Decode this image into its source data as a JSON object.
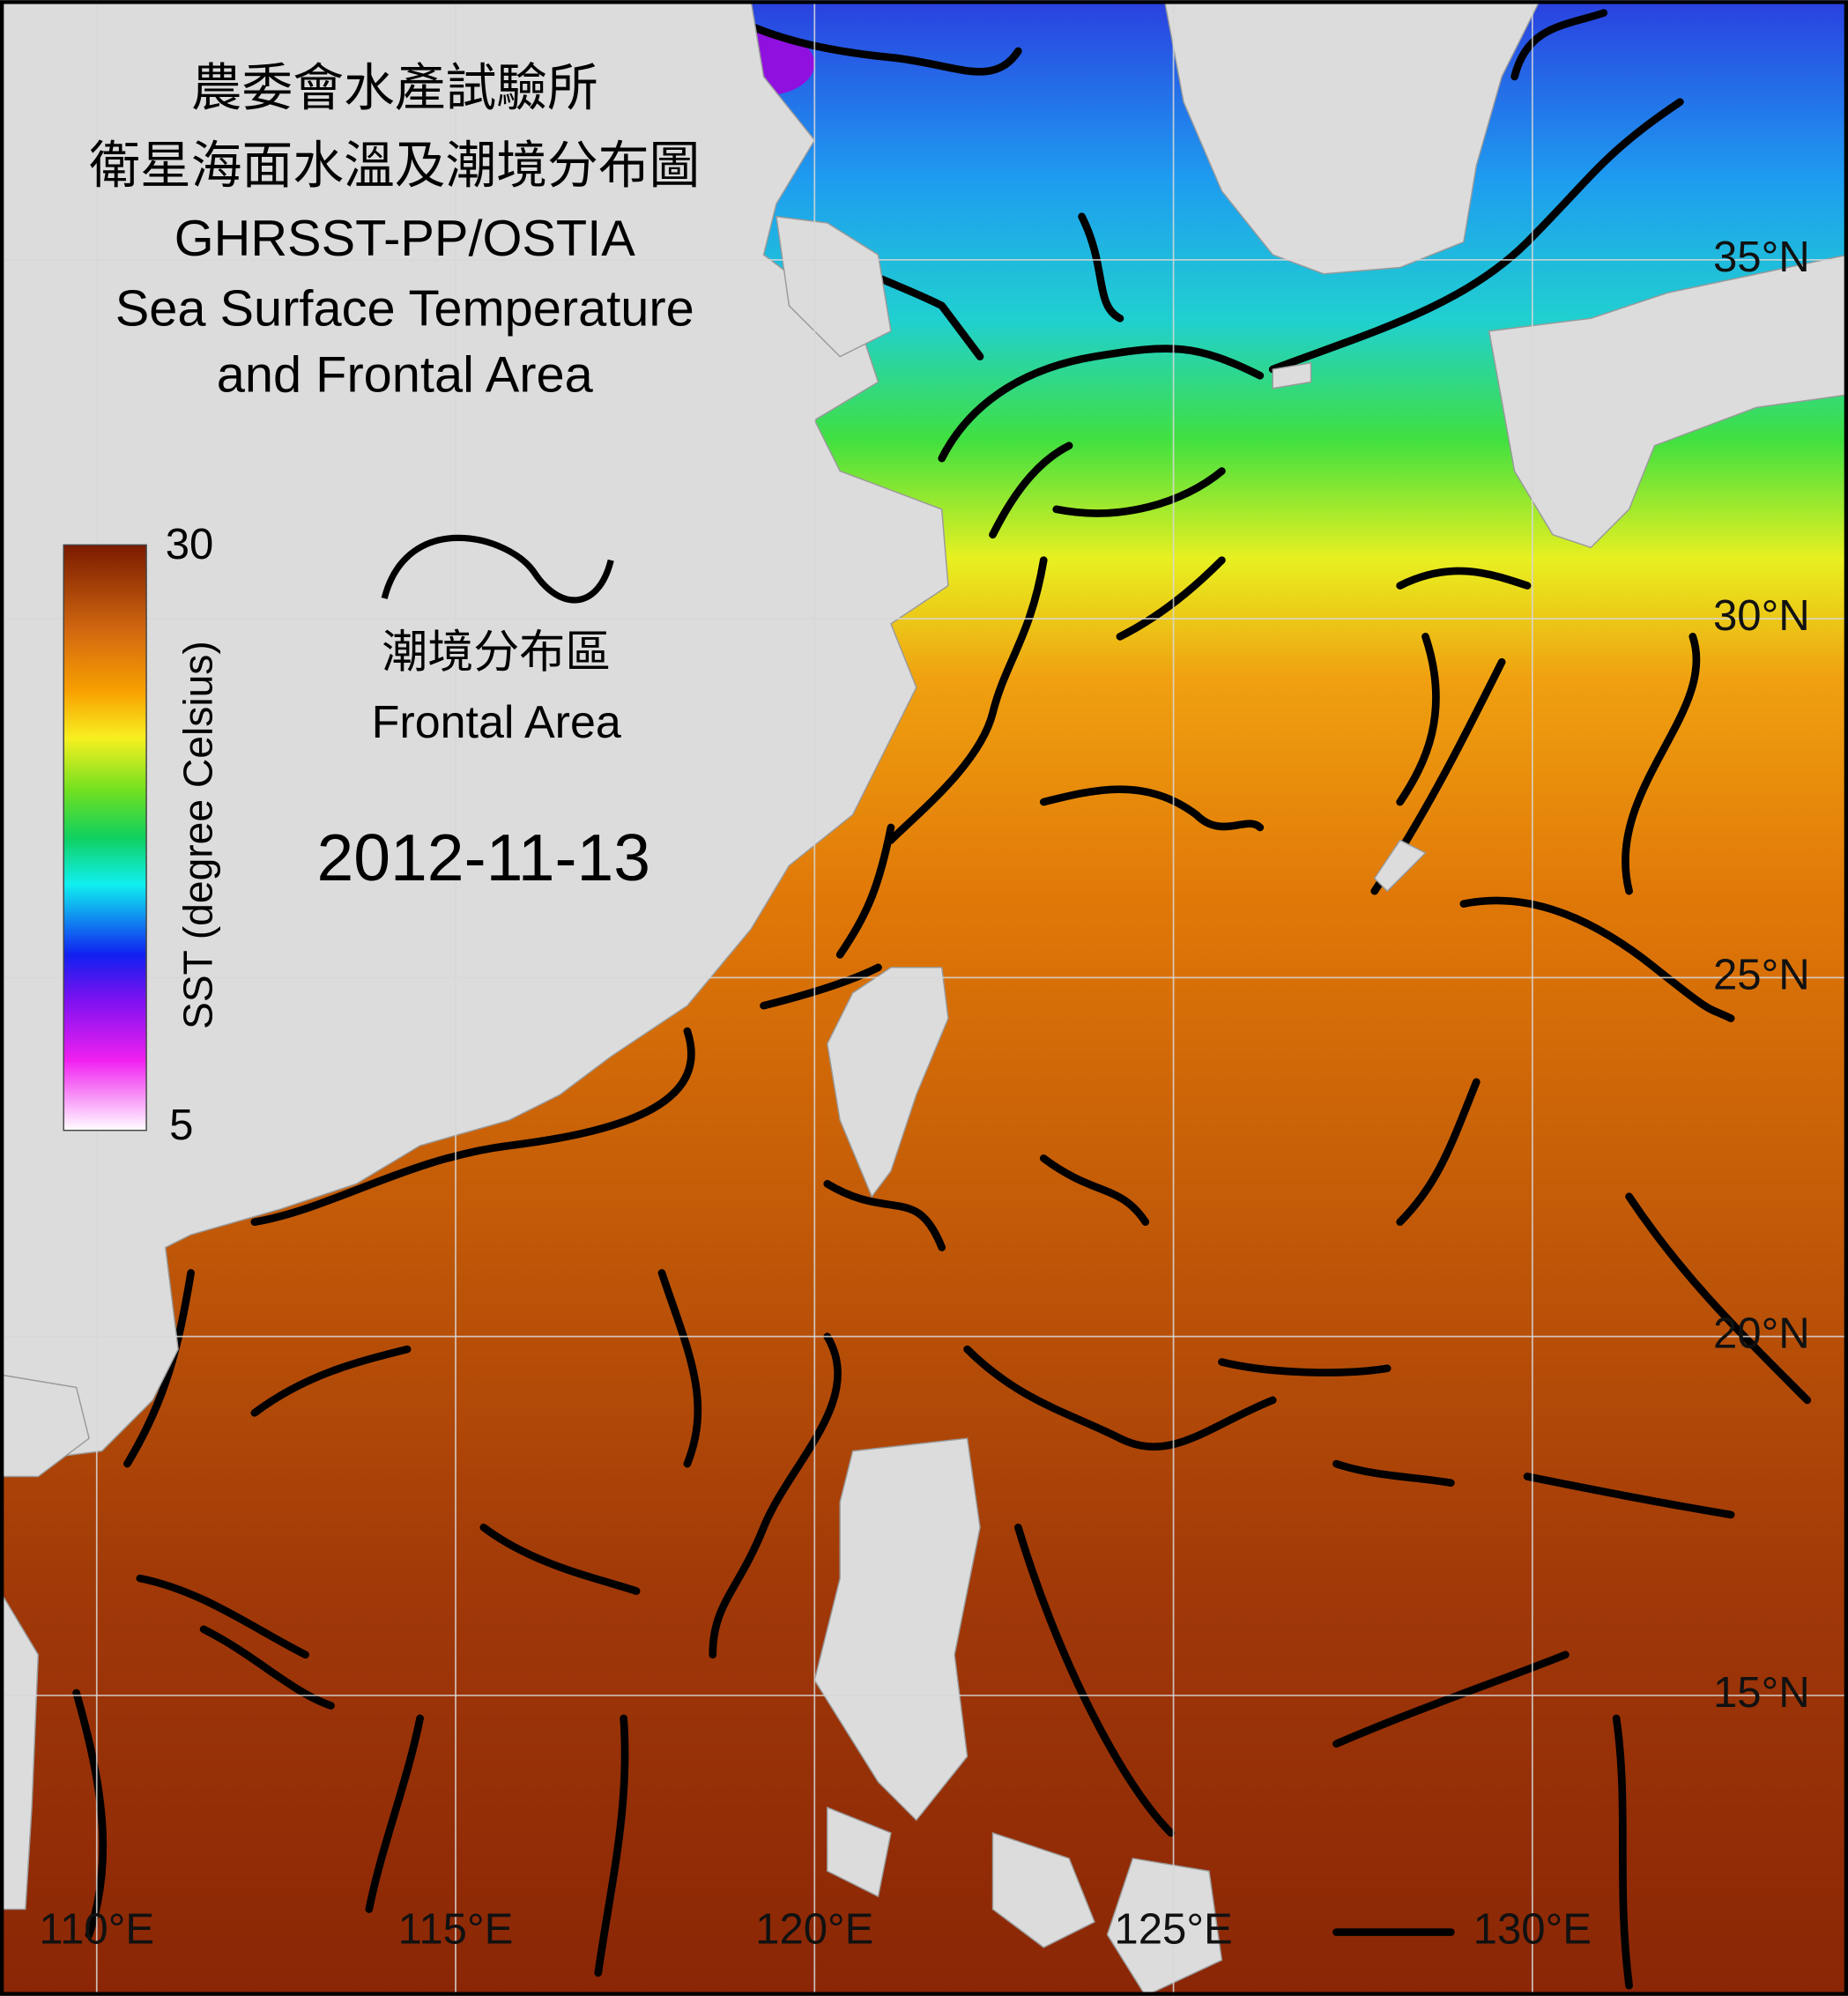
{
  "map": {
    "title": [
      "農委會水產試驗所",
      "衛星海面水溫及潮境分布圖",
      "GHRSST-PP/OSTIA",
      "Sea Surface Temperature",
      "and Frontal Area"
    ],
    "date": "2012-11-13",
    "colorbar": {
      "label": "SST (degree Celsius)",
      "max": 30,
      "min": 5
    },
    "legend": {
      "label_zh": "潮境分布區",
      "label_en": "Frontal Area"
    },
    "lat_ticks": [
      {
        "value": 35,
        "label": "35°N"
      },
      {
        "value": 30,
        "label": "30°N"
      },
      {
        "value": 25,
        "label": "25°N"
      },
      {
        "value": 20,
        "label": "20°N"
      },
      {
        "value": 15,
        "label": "15°N"
      }
    ],
    "lon_ticks": [
      {
        "value": 110,
        "label": "110°E"
      },
      {
        "value": 115,
        "label": "115°E"
      },
      {
        "value": 120,
        "label": "120°E"
      },
      {
        "value": 125,
        "label": "125°E"
      },
      {
        "value": 130,
        "label": "130°E"
      }
    ]
  }
}
